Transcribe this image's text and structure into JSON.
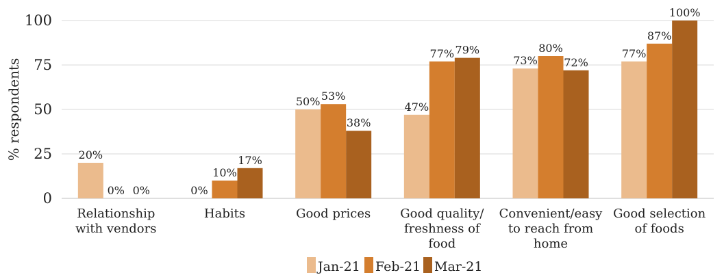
{
  "chart_data": {
    "type": "bar",
    "title": "",
    "xlabel": "",
    "ylabel": "% respondents",
    "ylim": [
      0,
      100
    ],
    "yticks": [
      "0",
      "25",
      "50",
      "75",
      "100"
    ],
    "grid": true,
    "legend_position": "bottom",
    "categories": [
      [
        "Relationship",
        "with vendors"
      ],
      [
        "Habits"
      ],
      [
        "Good prices"
      ],
      [
        "Good quality/",
        "freshness of",
        "food"
      ],
      [
        "Convenient/easy",
        "to reach from",
        "home"
      ],
      [
        "Good selection",
        "of foods"
      ]
    ],
    "series": [
      {
        "name": "Jan-21",
        "color": "#EBBB8D",
        "values": [
          20,
          0,
          50,
          47,
          73,
          77
        ],
        "labels": [
          "20%",
          "0%",
          "50%",
          "47%",
          "73%",
          "77%"
        ]
      },
      {
        "name": "Feb-21",
        "color": "#D47E2E",
        "values": [
          0,
          10,
          53,
          77,
          80,
          87
        ],
        "labels": [
          "0%",
          "10%",
          "53%",
          "77%",
          "80%",
          "87%"
        ]
      },
      {
        "name": "Mar-21",
        "color": "#A9611F",
        "values": [
          0,
          17,
          38,
          79,
          72,
          100
        ],
        "labels": [
          "0%",
          "17%",
          "38%",
          "79%",
          "72%",
          "100%"
        ]
      }
    ]
  }
}
